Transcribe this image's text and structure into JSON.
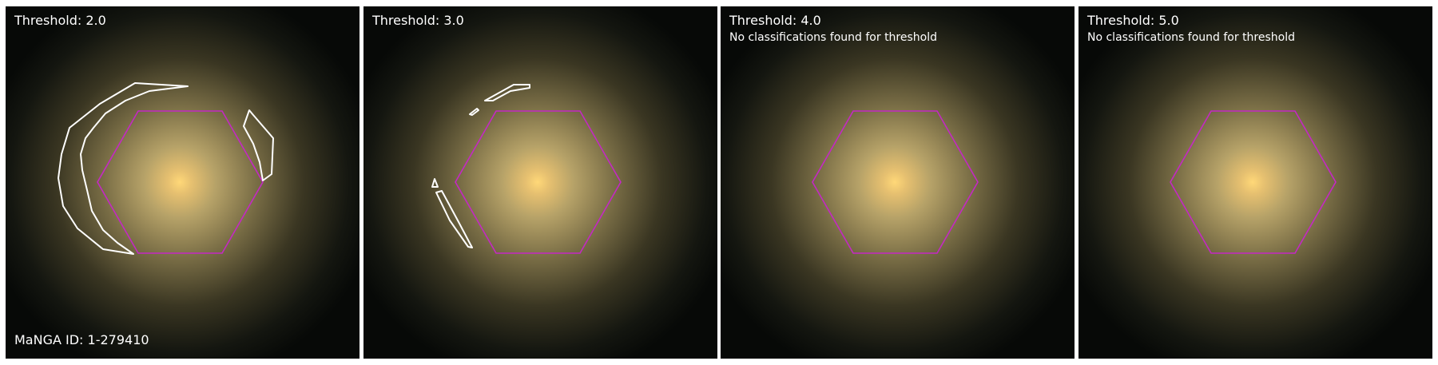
{
  "figure": {
    "colors": {
      "hexagon": "#c428c4",
      "contour": "#ffffff",
      "background": "#070907",
      "galaxy_core": "#ffd070",
      "galaxy_halo": "#8a7a48"
    },
    "panels": [
      {
        "title": "Threshold: 2.0",
        "note": "",
        "manga_id": "MaNGA ID: 1-279410",
        "has_contours": true
      },
      {
        "title": "Threshold: 3.0",
        "note": "",
        "manga_id": "",
        "has_contours": true
      },
      {
        "title": "Threshold: 4.0",
        "note": "No classifications found for threshold",
        "manga_id": "",
        "has_contours": false
      },
      {
        "title": "Threshold: 5.0",
        "note": "No classifications found for threshold",
        "manga_id": "",
        "has_contours": false
      }
    ]
  }
}
